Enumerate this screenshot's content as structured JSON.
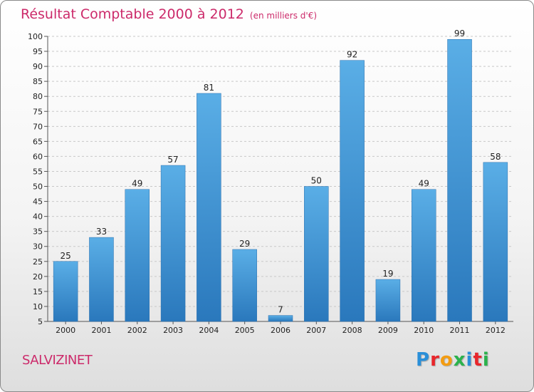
{
  "title": "Résultat Comptable 2000 à 2012",
  "subtitle": "(en milliers d'€)",
  "footer_label": "SALVIZINET",
  "logo": {
    "text": "Proxiti",
    "letters": [
      {
        "ch": "P",
        "color": "#2a8fd8"
      },
      {
        "ch": "r",
        "color": "#e8262b"
      },
      {
        "ch": "o",
        "color": "#f39c12"
      },
      {
        "ch": "x",
        "color": "#2bb24c"
      },
      {
        "ch": "i",
        "color": "#2a8fd8"
      },
      {
        "ch": "t",
        "color": "#e8262b"
      },
      {
        "ch": "i",
        "color": "#2bb24c"
      }
    ]
  },
  "colors": {
    "accent": "#cc2a6a",
    "bar_top": "#5aaee6",
    "bar_bottom": "#2a78bc"
  },
  "chart_data": {
    "type": "bar",
    "categories": [
      "2000",
      "2001",
      "2002",
      "2003",
      "2004",
      "2005",
      "2006",
      "2007",
      "2008",
      "2009",
      "2010",
      "2011",
      "2012"
    ],
    "values": [
      25,
      33,
      49,
      57,
      81,
      29,
      7,
      50,
      92,
      19,
      49,
      99,
      58
    ],
    "ylim": [
      5,
      100
    ],
    "yticks": [
      5,
      10,
      15,
      20,
      25,
      30,
      35,
      40,
      45,
      50,
      55,
      60,
      65,
      70,
      75,
      80,
      85,
      90,
      95,
      100
    ],
    "grid": "horizontal-dashed",
    "data_labels": true
  }
}
